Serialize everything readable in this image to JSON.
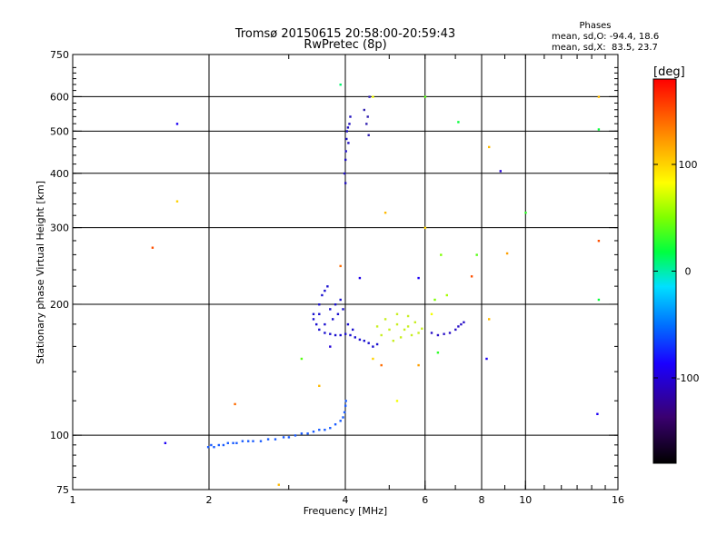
{
  "chart_data": {
    "type": "scatter",
    "title": "Tromsø 20150615 20:58:00-20:59:43",
    "subtitle": "RwPretec (8p)",
    "xlabel": "Frequency [MHz]",
    "ylabel": "Stationary phase Virtual Height [km]",
    "x_scale": "log",
    "y_scale": "log",
    "xlim": [
      1,
      16
    ],
    "ylim": [
      75,
      750
    ],
    "x_ticks": [
      1,
      2,
      4,
      6,
      8,
      10,
      16
    ],
    "x_tick_labels": [
      "1",
      "2",
      "4",
      "6",
      "8",
      "10",
      "16"
    ],
    "y_ticks": [
      75,
      100,
      200,
      300,
      400,
      500,
      600,
      750
    ],
    "y_tick_labels": [
      "75",
      "100",
      "200",
      "300",
      "400",
      "500",
      "600",
      "750"
    ],
    "grid": true,
    "stats": {
      "heading": "Phases",
      "line_o": "mean, sd,O: -94.4, 18.6",
      "line_x": "mean, sd,X:  83.5, 23.7"
    },
    "colorbar": {
      "label": "[deg]",
      "range": [
        -180,
        180
      ],
      "ticks": [
        100,
        0,
        -100
      ],
      "tick_labels": [
        "100",
        "0",
        "-100"
      ]
    },
    "o_trace": [
      [
        1.99,
        94
      ],
      [
        2.02,
        95
      ],
      [
        2.05,
        94
      ],
      [
        2.1,
        95
      ],
      [
        2.15,
        95
      ],
      [
        2.2,
        96
      ],
      [
        2.26,
        96
      ],
      [
        2.3,
        96
      ],
      [
        2.37,
        97
      ],
      [
        2.44,
        97
      ],
      [
        2.5,
        97
      ],
      [
        2.6,
        97
      ],
      [
        2.7,
        98
      ],
      [
        2.8,
        98
      ],
      [
        2.92,
        99
      ],
      [
        3.0,
        99
      ],
      [
        3.1,
        100
      ],
      [
        3.2,
        101
      ],
      [
        3.3,
        101
      ],
      [
        3.4,
        102
      ],
      [
        3.5,
        103
      ],
      [
        3.6,
        103
      ],
      [
        3.7,
        104
      ],
      [
        3.8,
        106
      ],
      [
        3.9,
        108
      ],
      [
        3.95,
        110
      ],
      [
        3.98,
        113
      ],
      [
        4.0,
        117
      ],
      [
        4.01,
        120
      ]
    ],
    "f_cloud": [
      [
        3.4,
        185
      ],
      [
        3.5,
        175
      ],
      [
        3.6,
        172
      ],
      [
        3.7,
        171
      ],
      [
        3.8,
        170
      ],
      [
        3.9,
        170
      ],
      [
        4.0,
        171
      ],
      [
        4.1,
        170
      ],
      [
        4.2,
        168
      ],
      [
        4.3,
        166
      ],
      [
        4.4,
        165
      ],
      [
        4.5,
        163
      ],
      [
        4.6,
        160
      ],
      [
        4.7,
        162
      ],
      [
        3.4,
        190
      ],
      [
        3.5,
        200
      ],
      [
        3.55,
        210
      ],
      [
        3.6,
        215
      ],
      [
        3.65,
        220
      ],
      [
        3.5,
        190
      ],
      [
        3.7,
        195
      ],
      [
        3.8,
        200
      ],
      [
        3.9,
        205
      ],
      [
        3.6,
        180
      ],
      [
        3.75,
        185
      ],
      [
        3.85,
        190
      ],
      [
        3.95,
        195
      ],
      [
        4.05,
        180
      ],
      [
        4.15,
        175
      ],
      [
        3.45,
        180
      ]
    ],
    "x_cloud": [
      [
        4.8,
        170
      ],
      [
        5.0,
        175
      ],
      [
        5.2,
        180
      ],
      [
        5.4,
        175
      ],
      [
        5.6,
        170
      ],
      [
        5.8,
        172
      ],
      [
        5.1,
        165
      ],
      [
        5.3,
        168
      ],
      [
        5.5,
        178
      ],
      [
        5.7,
        182
      ],
      [
        4.9,
        185
      ],
      [
        5.2,
        190
      ],
      [
        5.5,
        188
      ],
      [
        4.7,
        178
      ],
      [
        5.9,
        176
      ]
    ],
    "x_trace": [
      [
        6.2,
        172
      ],
      [
        6.4,
        170
      ],
      [
        6.6,
        171
      ],
      [
        6.8,
        172
      ],
      [
        7.0,
        175
      ],
      [
        7.1,
        178
      ],
      [
        7.2,
        180
      ],
      [
        7.3,
        182
      ]
    ],
    "spread_f_o": [
      [
        3.98,
        400
      ],
      [
        4.0,
        430
      ],
      [
        4.02,
        480
      ],
      [
        4.05,
        510
      ],
      [
        4.08,
        520
      ],
      [
        4.1,
        540
      ],
      [
        4.0,
        380
      ],
      [
        4.03,
        500
      ],
      [
        4.06,
        470
      ],
      [
        4.01,
        450
      ]
    ],
    "spread_f_x": [
      [
        4.4,
        560
      ],
      [
        4.45,
        520
      ],
      [
        4.5,
        490
      ],
      [
        4.52,
        600
      ],
      [
        4.48,
        540
      ]
    ],
    "scatter_points": [
      [
        1.7,
        520,
        -90
      ],
      [
        1.7,
        345,
        100
      ],
      [
        1.5,
        270,
        150
      ],
      [
        1.6,
        96,
        -90
      ],
      [
        2.28,
        118,
        140
      ],
      [
        2.85,
        77,
        110
      ],
      [
        3.9,
        640,
        10
      ],
      [
        4.6,
        600,
        80
      ],
      [
        6.0,
        600,
        40
      ],
      [
        7.1,
        525,
        20
      ],
      [
        8.3,
        460,
        110
      ],
      [
        8.8,
        405,
        -100
      ],
      [
        10.0,
        325,
        30
      ],
      [
        14.5,
        505,
        20
      ],
      [
        14.5,
        600,
        110
      ],
      [
        14.5,
        280,
        150
      ],
      [
        14.5,
        205,
        20
      ],
      [
        14.4,
        112,
        -90
      ],
      [
        8.2,
        150,
        -90
      ],
      [
        7.8,
        260,
        40
      ],
      [
        9.1,
        262,
        120
      ],
      [
        7.6,
        232,
        150
      ],
      [
        8.3,
        185,
        110
      ],
      [
        6.5,
        260,
        50
      ],
      [
        6.0,
        300,
        100
      ],
      [
        5.8,
        230,
        -90
      ],
      [
        6.7,
        210,
        60
      ],
      [
        4.9,
        325,
        110
      ],
      [
        4.8,
        145,
        140
      ],
      [
        5.2,
        120,
        80
      ],
      [
        5.8,
        145,
        120
      ],
      [
        6.4,
        155,
        30
      ],
      [
        3.7,
        160,
        -100
      ],
      [
        3.2,
        150,
        40
      ],
      [
        3.5,
        130,
        110
      ],
      [
        3.9,
        245,
        140
      ],
      [
        4.3,
        230,
        -95
      ],
      [
        6.2,
        190,
        80
      ],
      [
        6.3,
        205,
        50
      ],
      [
        4.6,
        150,
        100
      ]
    ]
  }
}
